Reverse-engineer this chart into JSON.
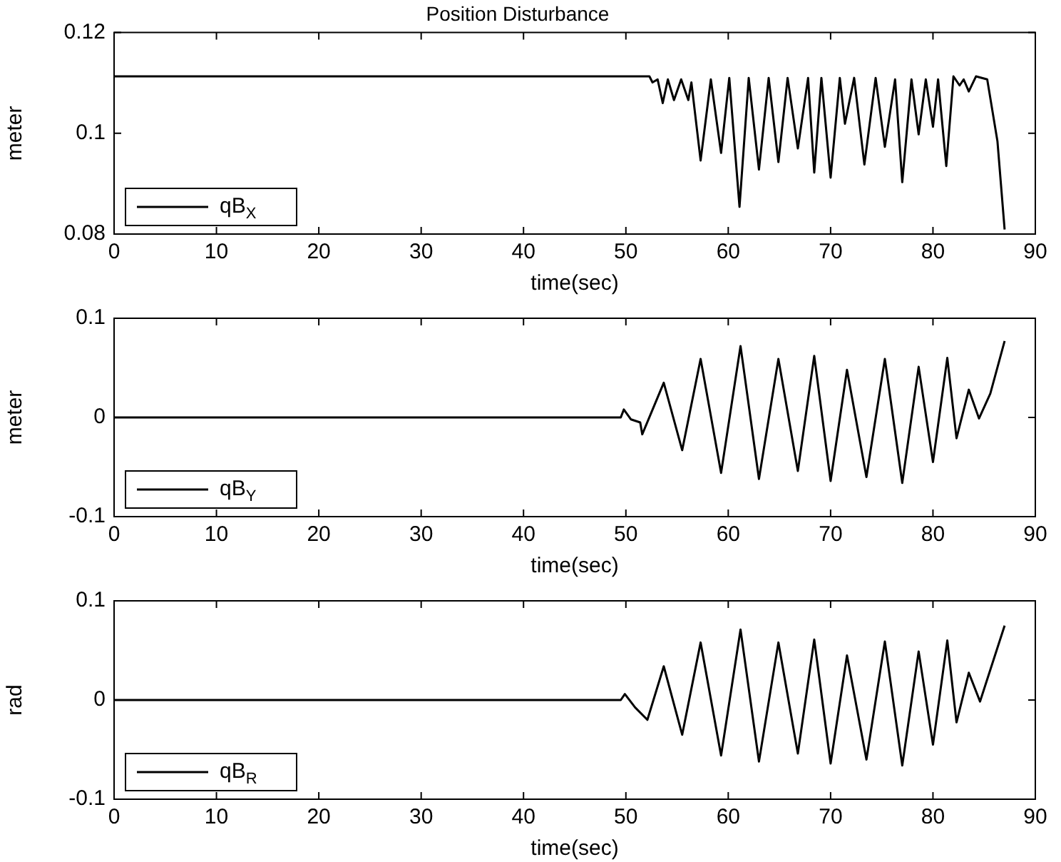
{
  "chart_data": [
    {
      "type": "line",
      "title": "Position Disturbance",
      "xlabel": "time(sec)",
      "ylabel": "meter",
      "xlim": [
        0,
        90
      ],
      "xticks": [
        0,
        10,
        20,
        30,
        40,
        50,
        60,
        70,
        80,
        90
      ],
      "ylim": [
        0.08,
        0.12
      ],
      "yticks": [
        0.08,
        0.1,
        0.12
      ],
      "legend": "bottom left",
      "grid": false,
      "series": [
        {
          "name": "qB$_{X}$",
          "color": "#000000",
          "x": [
            0,
            49.5,
            52.3,
            52.6,
            53.1,
            53.6,
            54.1,
            54.7,
            55.4,
            56.1,
            56.4,
            57.3,
            58.3,
            59.3,
            60.1,
            61.1,
            62.0,
            63.0,
            63.95,
            64.9,
            65.8,
            66.8,
            67.8,
            68.4,
            69.1,
            70.0,
            70.9,
            71.4,
            72.3,
            73.3,
            74.4,
            75.3,
            76.3,
            77.0,
            77.9,
            78.6,
            79.3,
            80.0,
            80.5,
            81.3,
            82.0,
            82.6,
            83.0,
            83.5,
            84.2,
            85.3,
            86.3,
            87.0
          ],
          "values": [
            0.1113,
            0.1113,
            0.1113,
            0.1101,
            0.1107,
            0.106,
            0.1107,
            0.1066,
            0.1107,
            0.1066,
            0.1101,
            0.0946,
            0.1107,
            0.0961,
            0.111,
            0.0854,
            0.111,
            0.0928,
            0.111,
            0.0943,
            0.111,
            0.097,
            0.111,
            0.0922,
            0.111,
            0.0912,
            0.111,
            0.1019,
            0.111,
            0.0938,
            0.111,
            0.0973,
            0.1107,
            0.0903,
            0.1107,
            0.0998,
            0.1107,
            0.1013,
            0.1107,
            0.0935,
            0.1113,
            0.1095,
            0.1107,
            0.1083,
            0.1113,
            0.1107,
            0.0984,
            0.0809
          ]
        }
      ]
    },
    {
      "type": "line",
      "xlabel": "time(sec)",
      "ylabel": "meter",
      "xlim": [
        0,
        90
      ],
      "xticks": [
        0,
        10,
        20,
        30,
        40,
        50,
        60,
        70,
        80,
        90
      ],
      "ylim": [
        -0.1,
        0.1
      ],
      "yticks": [
        -0.1,
        0,
        0.1
      ],
      "legend": "bottom left",
      "grid": false,
      "series": [
        {
          "name": "qB$_{Y}$",
          "color": "#000000",
          "x": [
            0,
            49.5,
            49.8,
            50.5,
            51.4,
            51.6,
            53.7,
            55.5,
            57.3,
            59.3,
            61.2,
            63.0,
            64.9,
            66.8,
            68.4,
            70.0,
            71.6,
            73.5,
            75.3,
            77.0,
            78.6,
            80.0,
            81.4,
            82.3,
            83.5,
            84.5,
            85.6,
            87.0
          ],
          "values": [
            0,
            0,
            0.008,
            -0.002,
            -0.005,
            -0.017,
            0.035,
            -0.033,
            0.059,
            -0.056,
            0.072,
            -0.062,
            0.059,
            -0.054,
            0.062,
            -0.064,
            0.048,
            -0.06,
            0.059,
            -0.066,
            0.051,
            -0.045,
            0.06,
            -0.021,
            0.028,
            -0.001,
            0.024,
            0.077
          ]
        }
      ]
    },
    {
      "type": "line",
      "xlabel": "time(sec)",
      "ylabel": "rad",
      "xlim": [
        0,
        90
      ],
      "xticks": [
        0,
        10,
        20,
        30,
        40,
        50,
        60,
        70,
        80,
        90
      ],
      "ylim": [
        -0.1,
        0.1
      ],
      "yticks": [
        -0.1,
        0,
        0.1
      ],
      "legend": "bottom left",
      "grid": false,
      "series": [
        {
          "name": "qB$_{R}$",
          "color": "#000000",
          "x": [
            0,
            49.5,
            49.9,
            50.9,
            52.1,
            53.7,
            55.5,
            57.3,
            59.3,
            61.2,
            63.0,
            64.9,
            66.8,
            68.4,
            70.0,
            71.6,
            73.5,
            75.3,
            77.0,
            78.6,
            80.0,
            81.4,
            82.3,
            83.5,
            84.6,
            87.0
          ],
          "values": [
            0,
            0,
            0.006,
            -0.0075,
            -0.02,
            0.034,
            -0.035,
            0.058,
            -0.056,
            0.071,
            -0.062,
            0.058,
            -0.054,
            0.061,
            -0.064,
            0.045,
            -0.06,
            0.059,
            -0.066,
            0.049,
            -0.045,
            0.06,
            -0.0225,
            0.0275,
            -0.0015,
            0.075
          ]
        }
      ]
    }
  ]
}
